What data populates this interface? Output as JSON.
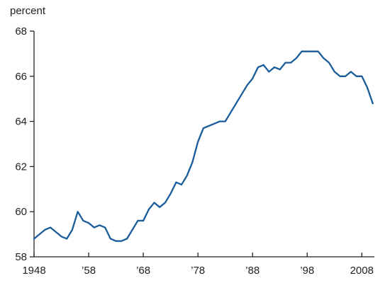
{
  "chart_data": {
    "type": "line",
    "ylabel": "percent",
    "ylim": [
      58,
      68
    ],
    "xlim": [
      1948,
      2010.3
    ],
    "grid": false,
    "legend": "none",
    "y_ticks": [
      {
        "value": 58,
        "label": "58"
      },
      {
        "value": 60,
        "label": "60"
      },
      {
        "value": 62,
        "label": "62"
      },
      {
        "value": 64,
        "label": "64"
      },
      {
        "value": 66,
        "label": "66"
      },
      {
        "value": 68,
        "label": "68"
      }
    ],
    "x_ticks": [
      {
        "value": 1948,
        "label": "1948"
      },
      {
        "value": 1958,
        "label": "’58"
      },
      {
        "value": 1968,
        "label": "’68"
      },
      {
        "value": 1978,
        "label": "’78"
      },
      {
        "value": 1988,
        "label": "’88"
      },
      {
        "value": 1998,
        "label": "’98"
      },
      {
        "value": 2008,
        "label": "2008"
      }
    ],
    "series": [
      {
        "color": "#1a5c99",
        "x": [
          1948,
          1949,
          1950,
          1951,
          1952,
          1953,
          1954,
          1955,
          1956,
          1957,
          1958,
          1959,
          1960,
          1961,
          1962,
          1963,
          1964,
          1965,
          1966,
          1967,
          1968,
          1969,
          1970,
          1971,
          1972,
          1973,
          1974,
          1975,
          1976,
          1977,
          1978,
          1979,
          1980,
          1981,
          1982,
          1983,
          1984,
          1985,
          1986,
          1987,
          1988,
          1989,
          1990,
          1991,
          1992,
          1993,
          1994,
          1995,
          1996,
          1997,
          1998,
          1999,
          2000,
          2001,
          2002,
          2003,
          2004,
          2005,
          2006,
          2007,
          2008,
          2009,
          2010
        ],
        "y": [
          58.8,
          59.0,
          59.2,
          59.3,
          59.1,
          58.9,
          58.8,
          59.2,
          60.0,
          59.6,
          59.5,
          59.3,
          59.4,
          59.3,
          58.8,
          58.7,
          58.7,
          58.8,
          59.2,
          59.6,
          59.6,
          60.1,
          60.4,
          60.2,
          60.4,
          60.8,
          61.3,
          61.2,
          61.6,
          62.2,
          63.1,
          63.7,
          63.8,
          63.9,
          64.0,
          64.0,
          64.4,
          64.8,
          65.2,
          65.6,
          65.9,
          66.4,
          66.5,
          66.2,
          66.4,
          66.3,
          66.6,
          66.6,
          66.8,
          67.1,
          67.1,
          67.1,
          67.1,
          66.8,
          66.6,
          66.2,
          66.0,
          66.0,
          66.2,
          66.0,
          66.0,
          65.5,
          64.8
        ]
      }
    ]
  }
}
